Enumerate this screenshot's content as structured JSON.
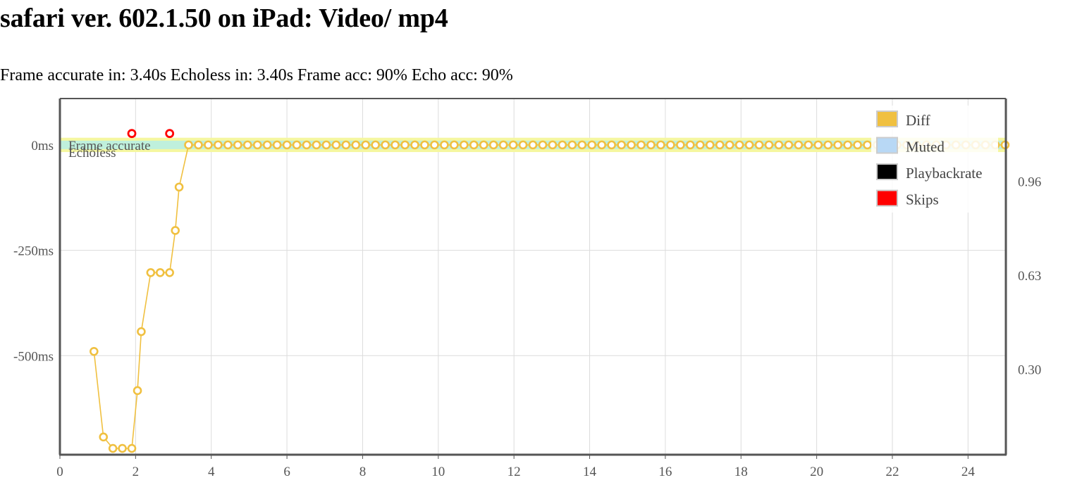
{
  "title": "safari ver. 602.1.50 on iPad: Video/ mp4",
  "summary": {
    "frame_accurate_in": "Frame accurate in: 3.40s",
    "echoless_in": "Echoless in: 3.40s",
    "frame_acc": "Frame acc: 90%",
    "echo_acc": "Echo acc: 90%"
  },
  "chart_data": {
    "type": "line",
    "title": "",
    "xlabel": "",
    "ylabel": "",
    "xlim": [
      0,
      25
    ],
    "ylim": [
      -735,
      110
    ],
    "y2lim": [
      0,
      1.25
    ],
    "grid": true,
    "x_ticks": [
      0,
      2,
      4,
      6,
      8,
      10,
      12,
      14,
      16,
      18,
      20,
      22,
      24
    ],
    "y_ticks": [
      {
        "value": 0,
        "label": "0ms"
      },
      {
        "value": -250,
        "label": "-250ms"
      },
      {
        "value": -500,
        "label": "-500ms"
      }
    ],
    "y2_ticks": [
      {
        "value": 0.96,
        "label": "0.96"
      },
      {
        "value": 0.63,
        "label": "0.63"
      },
      {
        "value": 0.3,
        "label": "0.30"
      }
    ],
    "bands": [
      {
        "label": "Frame accurate",
        "y_range": [
          -17,
          17
        ],
        "color": "#f5f7a0"
      },
      {
        "label": "Echoless",
        "y_range": [
          -10,
          10
        ],
        "color": "#bff0dc"
      }
    ],
    "legend": {
      "position": "top-right",
      "items": [
        {
          "label": "Diff",
          "color": "#f0c040"
        },
        {
          "label": "Muted",
          "color": "#b8d8f5"
        },
        {
          "label": "Playbackrate",
          "color": "#000000"
        },
        {
          "label": "Skips",
          "color": "#ff0000"
        }
      ]
    },
    "series": [
      {
        "name": "Diff",
        "color": "#f0c040",
        "points": [
          [
            0.9,
            -490
          ],
          [
            1.15,
            -693
          ],
          [
            1.4,
            -720
          ],
          [
            1.65,
            -720
          ],
          [
            1.9,
            -720
          ],
          [
            2.05,
            -583
          ],
          [
            2.15,
            -443
          ],
          [
            2.4,
            -303
          ],
          [
            2.65,
            -303
          ],
          [
            2.9,
            -303
          ],
          [
            3.05,
            -203
          ],
          [
            3.15,
            -100
          ],
          [
            3.4,
            0
          ]
        ],
        "flat_tail": {
          "from": 3.4,
          "to": 25.0,
          "step": 0.26,
          "value": 0
        }
      },
      {
        "name": "Skips",
        "color": "#ff0000",
        "points": [
          [
            1.9,
            27
          ],
          [
            2.9,
            27
          ]
        ]
      }
    ]
  }
}
